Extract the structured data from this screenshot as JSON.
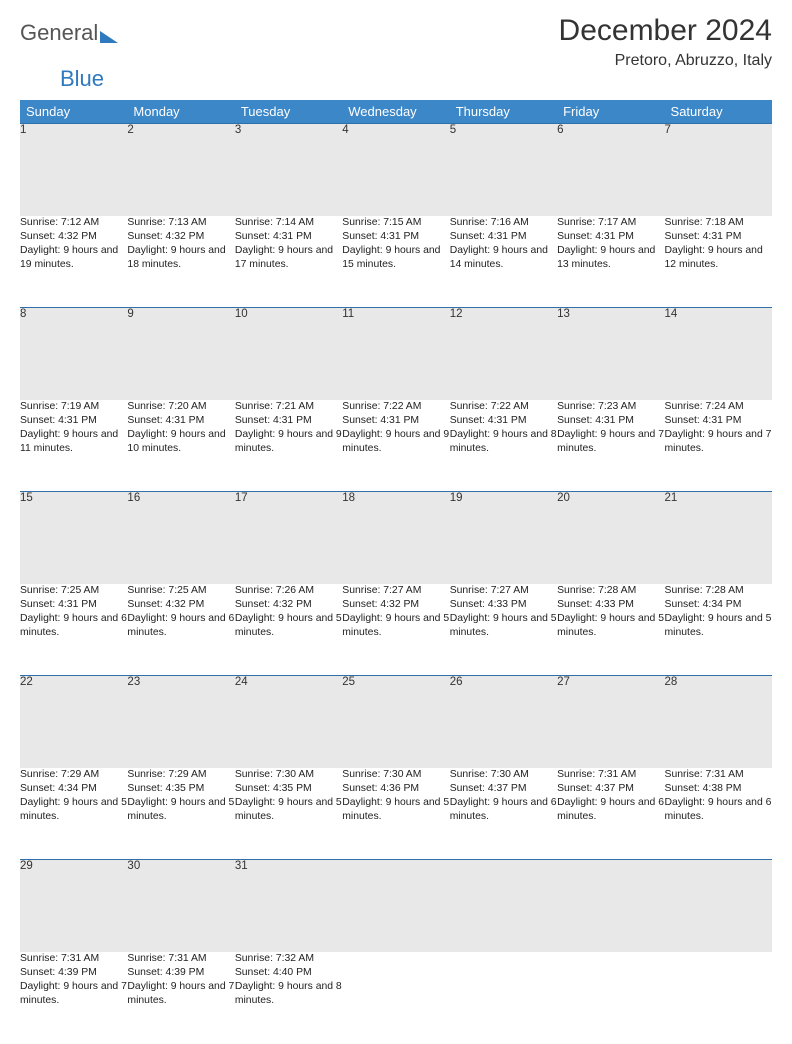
{
  "logo": {
    "line1": "General",
    "line2": "Blue"
  },
  "header": {
    "title": "December 2024",
    "location": "Pretoro, Abruzzo, Italy"
  },
  "colors": {
    "header_bg": "#3b87c8",
    "header_text": "#ffffff",
    "daynum_bg": "#e8e8e8",
    "row_border": "#2f6faa",
    "logo_gray": "#555555",
    "logo_blue": "#2f79bf"
  },
  "weekdays": [
    "Sunday",
    "Monday",
    "Tuesday",
    "Wednesday",
    "Thursday",
    "Friday",
    "Saturday"
  ],
  "weeks": [
    [
      {
        "n": "1",
        "sr": "7:12 AM",
        "ss": "4:32 PM",
        "dl": "9 hours and 19 minutes."
      },
      {
        "n": "2",
        "sr": "7:13 AM",
        "ss": "4:32 PM",
        "dl": "9 hours and 18 minutes."
      },
      {
        "n": "3",
        "sr": "7:14 AM",
        "ss": "4:31 PM",
        "dl": "9 hours and 17 minutes."
      },
      {
        "n": "4",
        "sr": "7:15 AM",
        "ss": "4:31 PM",
        "dl": "9 hours and 15 minutes."
      },
      {
        "n": "5",
        "sr": "7:16 AM",
        "ss": "4:31 PM",
        "dl": "9 hours and 14 minutes."
      },
      {
        "n": "6",
        "sr": "7:17 AM",
        "ss": "4:31 PM",
        "dl": "9 hours and 13 minutes."
      },
      {
        "n": "7",
        "sr": "7:18 AM",
        "ss": "4:31 PM",
        "dl": "9 hours and 12 minutes."
      }
    ],
    [
      {
        "n": "8",
        "sr": "7:19 AM",
        "ss": "4:31 PM",
        "dl": "9 hours and 11 minutes."
      },
      {
        "n": "9",
        "sr": "7:20 AM",
        "ss": "4:31 PM",
        "dl": "9 hours and 10 minutes."
      },
      {
        "n": "10",
        "sr": "7:21 AM",
        "ss": "4:31 PM",
        "dl": "9 hours and 9 minutes."
      },
      {
        "n": "11",
        "sr": "7:22 AM",
        "ss": "4:31 PM",
        "dl": "9 hours and 9 minutes."
      },
      {
        "n": "12",
        "sr": "7:22 AM",
        "ss": "4:31 PM",
        "dl": "9 hours and 8 minutes."
      },
      {
        "n": "13",
        "sr": "7:23 AM",
        "ss": "4:31 PM",
        "dl": "9 hours and 7 minutes."
      },
      {
        "n": "14",
        "sr": "7:24 AM",
        "ss": "4:31 PM",
        "dl": "9 hours and 7 minutes."
      }
    ],
    [
      {
        "n": "15",
        "sr": "7:25 AM",
        "ss": "4:31 PM",
        "dl": "9 hours and 6 minutes."
      },
      {
        "n": "16",
        "sr": "7:25 AM",
        "ss": "4:32 PM",
        "dl": "9 hours and 6 minutes."
      },
      {
        "n": "17",
        "sr": "7:26 AM",
        "ss": "4:32 PM",
        "dl": "9 hours and 5 minutes."
      },
      {
        "n": "18",
        "sr": "7:27 AM",
        "ss": "4:32 PM",
        "dl": "9 hours and 5 minutes."
      },
      {
        "n": "19",
        "sr": "7:27 AM",
        "ss": "4:33 PM",
        "dl": "9 hours and 5 minutes."
      },
      {
        "n": "20",
        "sr": "7:28 AM",
        "ss": "4:33 PM",
        "dl": "9 hours and 5 minutes."
      },
      {
        "n": "21",
        "sr": "7:28 AM",
        "ss": "4:34 PM",
        "dl": "9 hours and 5 minutes."
      }
    ],
    [
      {
        "n": "22",
        "sr": "7:29 AM",
        "ss": "4:34 PM",
        "dl": "9 hours and 5 minutes."
      },
      {
        "n": "23",
        "sr": "7:29 AM",
        "ss": "4:35 PM",
        "dl": "9 hours and 5 minutes."
      },
      {
        "n": "24",
        "sr": "7:30 AM",
        "ss": "4:35 PM",
        "dl": "9 hours and 5 minutes."
      },
      {
        "n": "25",
        "sr": "7:30 AM",
        "ss": "4:36 PM",
        "dl": "9 hours and 5 minutes."
      },
      {
        "n": "26",
        "sr": "7:30 AM",
        "ss": "4:37 PM",
        "dl": "9 hours and 6 minutes."
      },
      {
        "n": "27",
        "sr": "7:31 AM",
        "ss": "4:37 PM",
        "dl": "9 hours and 6 minutes."
      },
      {
        "n": "28",
        "sr": "7:31 AM",
        "ss": "4:38 PM",
        "dl": "9 hours and 6 minutes."
      }
    ],
    [
      {
        "n": "29",
        "sr": "7:31 AM",
        "ss": "4:39 PM",
        "dl": "9 hours and 7 minutes."
      },
      {
        "n": "30",
        "sr": "7:31 AM",
        "ss": "4:39 PM",
        "dl": "9 hours and 7 minutes."
      },
      {
        "n": "31",
        "sr": "7:32 AM",
        "ss": "4:40 PM",
        "dl": "9 hours and 8 minutes."
      },
      null,
      null,
      null,
      null
    ]
  ],
  "labels": {
    "sunrise": "Sunrise:",
    "sunset": "Sunset:",
    "daylight": "Daylight:"
  }
}
